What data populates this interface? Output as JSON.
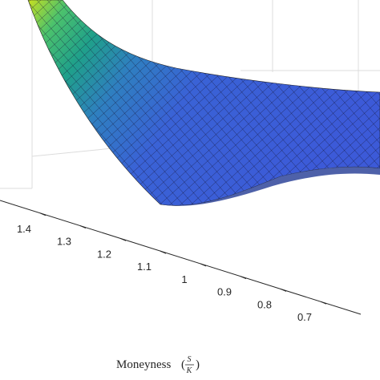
{
  "chart_data": {
    "type": "surface",
    "xlabel": "Moneyness",
    "xlabel_fraction": {
      "numerator": "S",
      "denominator": "K"
    },
    "xlim": [
      1.5,
      0.6
    ],
    "xticks": [
      1.4,
      1.3,
      1.2,
      1.1,
      1,
      0.9,
      0.8,
      0.7
    ],
    "grid": true
  }
}
